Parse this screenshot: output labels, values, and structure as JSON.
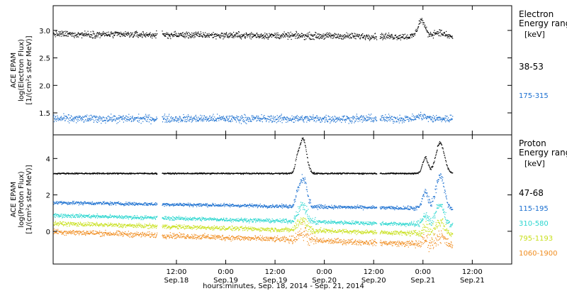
{
  "chart_data": [
    {
      "type": "scatter",
      "panel": "electron",
      "ylabel_lines": [
        "ACE EPAM",
        "log(Electron Flux)",
        "[1/(cm²s ster MeV)]"
      ],
      "ylim": [
        1.1,
        3.45
      ],
      "yticks": [
        {
          "v": 1.5,
          "label": "1.5"
        },
        {
          "v": 2.0,
          "label": "2.0"
        },
        {
          "v": 2.5,
          "label": "2.5"
        },
        {
          "v": 3.0,
          "label": "3.0"
        }
      ],
      "legend_title_lines": [
        "Electron",
        "Energy range"
      ],
      "legend_unit": "[keV]",
      "series": [
        {
          "name": "38-53",
          "color": "#000000",
          "base": 2.94,
          "noise": 0.05
        },
        {
          "name": "175-315",
          "color": "#1a6fd0",
          "base": 1.4,
          "noise": 0.06
        }
      ]
    },
    {
      "type": "scatter",
      "panel": "proton",
      "ylabel_lines": [
        "ACE EPAM",
        "log(Proton Flux)",
        "[1/(cm²s ster MeV)]"
      ],
      "ylim": [
        -1.8,
        5.3
      ],
      "yticks": [
        {
          "v": 0,
          "label": "0"
        },
        {
          "v": 2,
          "label": "2"
        },
        {
          "v": 4,
          "label": "4"
        }
      ],
      "legend_title_lines": [
        "Proton",
        "Energy range"
      ],
      "legend_unit": "[keV]",
      "series": [
        {
          "name": "47-68",
          "color": "#000000",
          "base": 3.2,
          "noise": 0.03
        },
        {
          "name": "115-195",
          "color": "#1a6fd0",
          "base": 1.6,
          "noise": 0.08
        },
        {
          "name": "310-580",
          "color": "#2ad6cf",
          "base": 0.9,
          "noise": 0.09
        },
        {
          "name": "795-1193",
          "color": "#c8e01c",
          "base": 0.45,
          "noise": 0.1
        },
        {
          "name": "1060-1900",
          "color": "#f08c1e",
          "base": 0.0,
          "noise": 0.13
        }
      ]
    }
  ],
  "x_axis": {
    "range_days": [
      17.25,
      21.9
    ],
    "ticks": [
      {
        "t": 18.5,
        "time": "12:00",
        "date": "Sep.18"
      },
      {
        "t": 19.0,
        "time": "0:00",
        "date": "Sep.19"
      },
      {
        "t": 19.5,
        "time": "12:00",
        "date": "Sep.19"
      },
      {
        "t": 20.0,
        "time": "0:00",
        "date": "Sep.20"
      },
      {
        "t": 20.5,
        "time": "12:00",
        "date": "Sep.20"
      },
      {
        "t": 21.0,
        "time": "0:00",
        "date": "Sep.21"
      },
      {
        "t": 21.5,
        "time": "12:00",
        "date": "Sep.21"
      }
    ],
    "label": "hours:minutes, Sep. 18, 2014 - Sep. 21, 2014",
    "data_start": 17.25,
    "data_end": 21.3,
    "gaps": [
      [
        18.3,
        18.35
      ],
      [
        20.53,
        20.56
      ]
    ]
  }
}
